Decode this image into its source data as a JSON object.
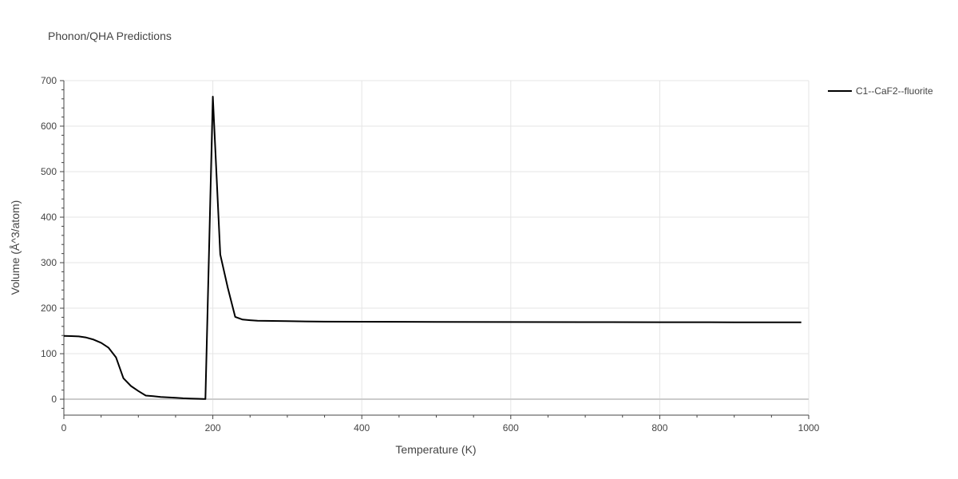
{
  "chart_data": {
    "type": "line",
    "title": "Phonon/QHA Predictions",
    "xlabel": "Temperature (K)",
    "ylabel": "Volume (Å^3/atom)",
    "xlim": [
      0,
      1000
    ],
    "ylim": [
      -35,
      700
    ],
    "xticks": [
      0,
      200,
      400,
      600,
      800,
      1000
    ],
    "yticks": [
      0,
      100,
      200,
      300,
      400,
      500,
      600,
      700
    ],
    "grid": true,
    "legend_position": "top-right",
    "series": [
      {
        "name": "C1--CaF2--fluorite",
        "color": "#000000",
        "x": [
          0,
          10,
          20,
          30,
          40,
          50,
          60,
          70,
          80,
          90,
          100,
          110,
          120,
          130,
          140,
          150,
          160,
          170,
          180,
          190,
          200,
          210,
          220,
          230,
          240,
          250,
          260,
          280,
          300,
          350,
          400,
          500,
          600,
          700,
          800,
          900,
          990
        ],
        "y": [
          139,
          138.7,
          138,
          135.5,
          131,
          124,
          113,
          92,
          46,
          29,
          18,
          8,
          6.5,
          5,
          4,
          3,
          2,
          1.5,
          1,
          0.5,
          665,
          318,
          245,
          181,
          175,
          173.5,
          172.5,
          172,
          171.5,
          170.5,
          170.2,
          169.8,
          169.5,
          169.3,
          169.1,
          169,
          168.9
        ]
      }
    ]
  }
}
